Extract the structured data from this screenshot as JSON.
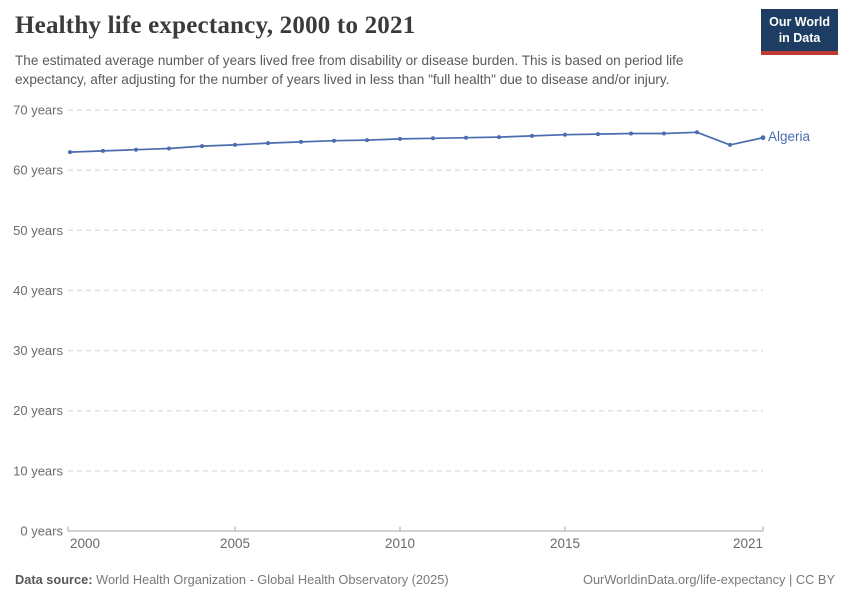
{
  "header": {
    "title": "Healthy life expectancy, 2000 to 2021",
    "subtitle": "The estimated average number of years lived free from disability or disease burden. This is based on period life expectancy, after adjusting for the number of years lived in less than \"full health\" due to disease and/or injury.",
    "logo": {
      "line1": "Our World",
      "line2": "in Data"
    }
  },
  "chart_data": {
    "type": "line",
    "title": "Healthy life expectancy, 2000 to 2021",
    "x": [
      2000,
      2001,
      2002,
      2003,
      2004,
      2005,
      2006,
      2007,
      2008,
      2009,
      2010,
      2011,
      2012,
      2013,
      2014,
      2015,
      2016,
      2017,
      2018,
      2019,
      2020,
      2021
    ],
    "series": [
      {
        "name": "Algeria",
        "values": [
          63.0,
          63.2,
          63.4,
          63.6,
          64.0,
          64.2,
          64.5,
          64.7,
          64.9,
          65.0,
          65.2,
          65.3,
          65.4,
          65.5,
          65.7,
          65.9,
          66.0,
          66.1,
          66.1,
          66.3,
          64.2,
          65.4
        ],
        "color": "#4b6cae"
      }
    ],
    "unit": "years",
    "ylim": [
      0,
      70
    ],
    "yticks": [
      0,
      10,
      20,
      30,
      40,
      50,
      60,
      70
    ],
    "ytick_suffix": " years",
    "xticks": [
      2000,
      2005,
      2010,
      2015,
      2021
    ],
    "grid": "horizontal-dashed",
    "legend_position": "end-of-line-label"
  },
  "footer": {
    "source_label": "Data source:",
    "source_text": "World Health Organization - Global Health Observatory (2025)",
    "credit": "OurWorldinData.org/life-expectancy | CC BY"
  },
  "colors": {
    "line": "#4b6cae",
    "grid": "#e0e0e0",
    "axis_line": "#a5a5a5",
    "axis_text": "#6b6b6b",
    "title_text": "#3b3b3b",
    "logo_bg": "#1d3d63",
    "logo_stripe": "#bf3936"
  }
}
